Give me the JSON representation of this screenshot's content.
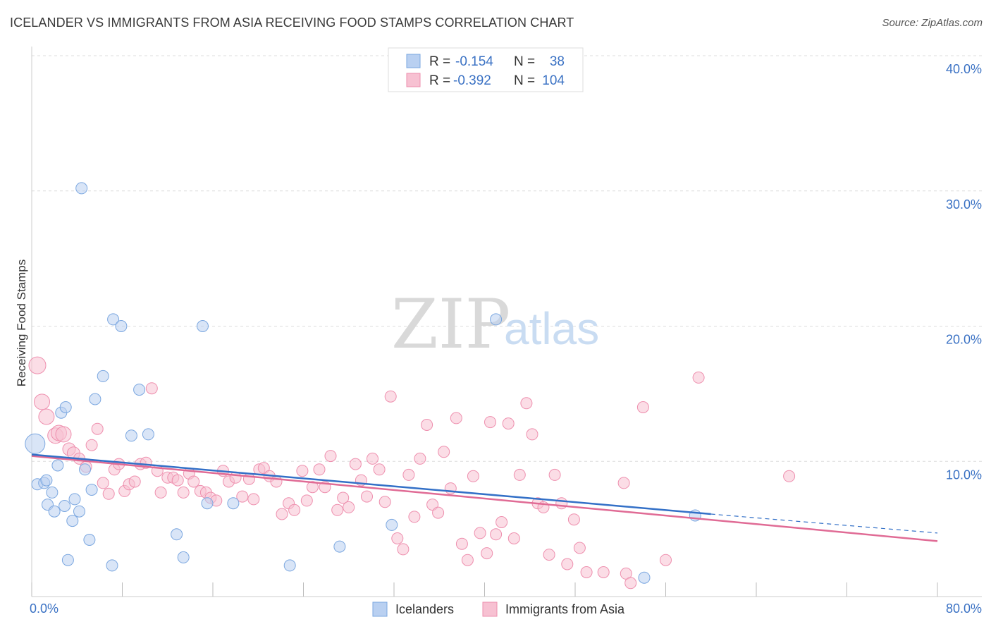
{
  "title": "ICELANDER VS IMMIGRANTS FROM ASIA RECEIVING FOOD STAMPS CORRELATION CHART",
  "source": "Source: ZipAtlas.com",
  "watermark": {
    "zip": "ZIP",
    "atlas": "atlas"
  },
  "legend_top": {
    "rows": [
      {
        "r_label": "R =",
        "r_value": "-0.154",
        "n_label": "N =",
        "n_value": "38"
      },
      {
        "r_label": "R =",
        "r_value": "-0.392",
        "n_label": "N =",
        "n_value": "104"
      }
    ]
  },
  "legend_bottom": {
    "items": [
      "Icelanders",
      "Immigrants from Asia"
    ]
  },
  "chart_data": {
    "type": "scatter",
    "xlabel": "",
    "ylabel": "Receiving Food Stamps",
    "xlim": [
      0,
      80
    ],
    "ylim": [
      0,
      40
    ],
    "x_tick_labels": [
      "0.0%",
      "80.0%"
    ],
    "y_tick_labels": [
      "10.0%",
      "20.0%",
      "30.0%",
      "40.0%"
    ],
    "y_ticks": [
      10,
      20,
      30,
      40
    ],
    "x_minor_ticks": [
      0,
      8,
      16,
      24,
      32,
      40,
      48,
      56,
      64,
      72,
      80
    ],
    "grid": "horizontal dashed",
    "colors": {
      "blue": "#7ba7e0",
      "blue_fill": "#b9d0f1",
      "blue_line": "#3370c7",
      "pink": "#ee8fae",
      "pink_fill": "#f7c1d2",
      "pink_line": "#e06b95",
      "tick": "#3b72c4"
    },
    "series": [
      {
        "name": "Icelanders",
        "points": [
          [
            0.3,
            11.3,
            14
          ],
          [
            0.5,
            8.3,
            8
          ],
          [
            1.1,
            8.4,
            8
          ],
          [
            1.3,
            8.6,
            8
          ],
          [
            1.4,
            6.8,
            8
          ],
          [
            1.8,
            7.7,
            8
          ],
          [
            2.0,
            6.3,
            8
          ],
          [
            2.3,
            9.7,
            8
          ],
          [
            2.6,
            13.6,
            8
          ],
          [
            2.9,
            6.7,
            8
          ],
          [
            3.0,
            14.0,
            8
          ],
          [
            3.2,
            2.7,
            8
          ],
          [
            3.6,
            5.6,
            8
          ],
          [
            3.8,
            7.2,
            8
          ],
          [
            4.2,
            6.3,
            8
          ],
          [
            4.4,
            30.2,
            8
          ],
          [
            4.7,
            9.4,
            8
          ],
          [
            5.1,
            4.2,
            8
          ],
          [
            5.3,
            7.9,
            8
          ],
          [
            5.6,
            14.6,
            8
          ],
          [
            6.3,
            16.3,
            8
          ],
          [
            7.1,
            2.3,
            8
          ],
          [
            7.2,
            20.5,
            8
          ],
          [
            7.9,
            20.0,
            8
          ],
          [
            8.8,
            11.9,
            8
          ],
          [
            9.5,
            15.3,
            8
          ],
          [
            10.3,
            12.0,
            8
          ],
          [
            12.8,
            4.6,
            8
          ],
          [
            13.4,
            2.9,
            8
          ],
          [
            15.1,
            20.0,
            8
          ],
          [
            15.5,
            6.9,
            8
          ],
          [
            17.8,
            6.9,
            8
          ],
          [
            22.8,
            2.3,
            8
          ],
          [
            27.2,
            3.7,
            8
          ],
          [
            31.8,
            5.3,
            8
          ],
          [
            41.0,
            20.5,
            8
          ],
          [
            58.6,
            6.0,
            8
          ],
          [
            54.1,
            1.4,
            8
          ]
        ]
      },
      {
        "name": "Immigrants from Asia",
        "points": [
          [
            0.5,
            17.1,
            12
          ],
          [
            0.9,
            14.4,
            11
          ],
          [
            1.3,
            13.3,
            11
          ],
          [
            2.1,
            11.9,
            11
          ],
          [
            2.4,
            12.1,
            11
          ],
          [
            2.8,
            12.0,
            11
          ],
          [
            3.3,
            10.9,
            9
          ],
          [
            3.7,
            10.6,
            9
          ],
          [
            4.2,
            10.2,
            8
          ],
          [
            4.8,
            9.6,
            8
          ],
          [
            5.3,
            11.2,
            8
          ],
          [
            5.8,
            12.4,
            8
          ],
          [
            6.3,
            8.4,
            8
          ],
          [
            6.8,
            7.6,
            8
          ],
          [
            7.3,
            9.4,
            8
          ],
          [
            7.7,
            9.8,
            8
          ],
          [
            8.2,
            7.8,
            8
          ],
          [
            8.6,
            8.3,
            8
          ],
          [
            9.1,
            8.5,
            8
          ],
          [
            9.6,
            9.8,
            8
          ],
          [
            10.1,
            9.9,
            8
          ],
          [
            10.6,
            15.4,
            8
          ],
          [
            11.1,
            9.3,
            8
          ],
          [
            11.4,
            7.7,
            8
          ],
          [
            12.0,
            8.8,
            8
          ],
          [
            12.5,
            8.8,
            8
          ],
          [
            12.9,
            8.6,
            8
          ],
          [
            13.4,
            7.7,
            8
          ],
          [
            13.9,
            9.1,
            8
          ],
          [
            14.3,
            8.5,
            8
          ],
          [
            14.9,
            7.8,
            8
          ],
          [
            15.4,
            7.7,
            8
          ],
          [
            15.8,
            7.3,
            8
          ],
          [
            16.3,
            7.1,
            8
          ],
          [
            16.9,
            9.3,
            8
          ],
          [
            17.4,
            8.5,
            8
          ],
          [
            18.0,
            8.8,
            8
          ],
          [
            18.6,
            7.4,
            8
          ],
          [
            19.2,
            8.7,
            8
          ],
          [
            19.6,
            7.2,
            8
          ],
          [
            20.1,
            9.4,
            8
          ],
          [
            20.5,
            9.5,
            8
          ],
          [
            21.0,
            8.9,
            8
          ],
          [
            21.6,
            8.5,
            8
          ],
          [
            22.1,
            6.1,
            8
          ],
          [
            22.7,
            6.9,
            8
          ],
          [
            23.2,
            6.4,
            8
          ],
          [
            23.9,
            9.3,
            8
          ],
          [
            24.3,
            7.1,
            8
          ],
          [
            24.8,
            8.1,
            8
          ],
          [
            25.4,
            9.4,
            8
          ],
          [
            25.9,
            8.1,
            8
          ],
          [
            26.4,
            10.4,
            8
          ],
          [
            27.0,
            6.4,
            8
          ],
          [
            27.5,
            7.3,
            8
          ],
          [
            28.0,
            6.6,
            8
          ],
          [
            28.6,
            9.8,
            8
          ],
          [
            29.1,
            8.6,
            8
          ],
          [
            29.6,
            7.4,
            8
          ],
          [
            30.1,
            10.2,
            8
          ],
          [
            30.7,
            9.4,
            8
          ],
          [
            31.2,
            7.0,
            8
          ],
          [
            31.7,
            14.8,
            8
          ],
          [
            32.3,
            4.3,
            8
          ],
          [
            32.8,
            3.5,
            8
          ],
          [
            33.3,
            9.0,
            8
          ],
          [
            33.8,
            5.9,
            8
          ],
          [
            34.3,
            10.2,
            8
          ],
          [
            34.9,
            12.7,
            8
          ],
          [
            35.4,
            6.8,
            8
          ],
          [
            35.9,
            6.2,
            8
          ],
          [
            36.4,
            10.7,
            8
          ],
          [
            37.0,
            8.0,
            8
          ],
          [
            37.5,
            13.2,
            8
          ],
          [
            38.0,
            3.9,
            8
          ],
          [
            38.5,
            2.7,
            8
          ],
          [
            39.0,
            8.9,
            8
          ],
          [
            39.6,
            4.7,
            8
          ],
          [
            40.2,
            3.2,
            8
          ],
          [
            40.5,
            12.9,
            8
          ],
          [
            41.0,
            4.6,
            8
          ],
          [
            41.5,
            5.5,
            8
          ],
          [
            42.1,
            12.8,
            8
          ],
          [
            42.6,
            4.3,
            8
          ],
          [
            43.1,
            9.0,
            8
          ],
          [
            43.7,
            14.3,
            8
          ],
          [
            44.2,
            12.0,
            8
          ],
          [
            44.7,
            6.9,
            8
          ],
          [
            45.2,
            6.6,
            8
          ],
          [
            45.7,
            3.1,
            8
          ],
          [
            46.2,
            9.0,
            8
          ],
          [
            46.8,
            6.9,
            8
          ],
          [
            47.3,
            2.4,
            8
          ],
          [
            47.9,
            5.7,
            8
          ],
          [
            48.4,
            3.6,
            8
          ],
          [
            49.0,
            1.8,
            8
          ],
          [
            50.5,
            1.8,
            8
          ],
          [
            52.3,
            8.4,
            8
          ],
          [
            52.5,
            1.7,
            8
          ],
          [
            52.9,
            1.0,
            8
          ],
          [
            54.0,
            14.0,
            8
          ],
          [
            56.0,
            2.7,
            8
          ],
          [
            58.9,
            16.2,
            8
          ],
          [
            66.9,
            8.9,
            8
          ]
        ]
      }
    ],
    "trendlines": [
      {
        "series": "Icelanders",
        "from": [
          0,
          10.5
        ],
        "to": [
          60,
          6.1
        ],
        "dashed_to": [
          80,
          4.7
        ]
      },
      {
        "series": "Immigrants from Asia",
        "from": [
          0,
          10.4
        ],
        "to": [
          80,
          4.1
        ]
      }
    ]
  }
}
